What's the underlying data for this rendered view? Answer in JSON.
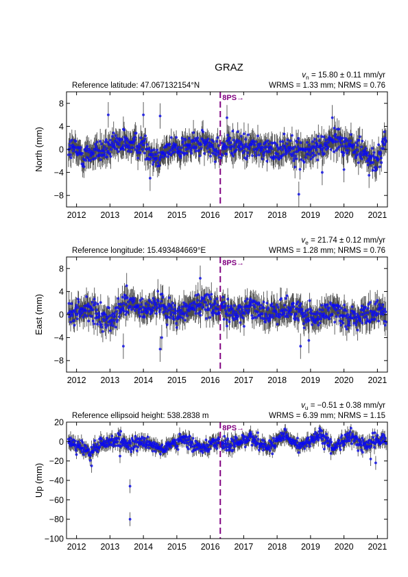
{
  "figure": {
    "title": "GRAZ"
  },
  "colors": {
    "error_bar": "#4d4d4d",
    "marker": "#1f1fd8",
    "marker_edge": "#0000ff",
    "event_line": "#800080"
  },
  "chart_data": [
    {
      "type": "scatter",
      "panel": "north",
      "ylabel": "North (mm)",
      "left_text": "Reference latitude: 47.067132154°N",
      "velocity": {
        "symbol": "v",
        "subscript": "n",
        "rest": " = 15.80 ± 0.11 mm/yr"
      },
      "stats": "WRMS = 1.33 mm; NRMS = 0.76",
      "xlim": [
        2011.7,
        2021.3
      ],
      "ylim": [
        -10,
        10
      ],
      "xticks": [
        2012,
        2013,
        2014,
        2015,
        2016,
        2017,
        2018,
        2019,
        2020,
        2021
      ],
      "yticks": [
        -8,
        -4,
        0,
        4,
        8
      ],
      "event": {
        "x": 2016.3,
        "label": "8PS→"
      },
      "noise_amp": 1.5,
      "err_amp": 1.7,
      "trend_points": [
        [
          2011.75,
          0.5
        ],
        [
          2012.2,
          -1.0
        ],
        [
          2012.5,
          -0.5
        ],
        [
          2013.0,
          0.2
        ],
        [
          2013.5,
          1.0
        ],
        [
          2014.0,
          0.8
        ],
        [
          2014.3,
          -1.2
        ],
        [
          2014.8,
          0.0
        ],
        [
          2015.3,
          0.5
        ],
        [
          2015.8,
          1.0
        ],
        [
          2016.3,
          0.0
        ],
        [
          2016.8,
          0.8
        ],
        [
          2017.3,
          0.5
        ],
        [
          2017.8,
          -0.5
        ],
        [
          2018.3,
          0.6
        ],
        [
          2018.8,
          -0.6
        ],
        [
          2019.3,
          0.5
        ],
        [
          2019.8,
          2.0
        ],
        [
          2020.2,
          0.5
        ],
        [
          2020.5,
          0.0
        ],
        [
          2020.9,
          -2.5
        ],
        [
          2021.05,
          -1.5
        ],
        [
          2021.25,
          1.8
        ]
      ],
      "outliers": [
        [
          2012.95,
          6.0
        ],
        [
          2013.4,
          3.5
        ],
        [
          2014.0,
          6.0
        ],
        [
          2014.2,
          -5.0
        ],
        [
          2014.5,
          5.8
        ],
        [
          2016.5,
          5.5
        ],
        [
          2018.65,
          -7.8
        ],
        [
          2019.35,
          -4.0
        ],
        [
          2019.65,
          5.5
        ],
        [
          2020.0,
          -3.5
        ],
        [
          2020.75,
          -4.5
        ]
      ]
    },
    {
      "type": "scatter",
      "panel": "east",
      "ylabel": "East (mm)",
      "left_text": "Reference longitude: 15.493484669°E",
      "velocity": {
        "symbol": "v",
        "subscript": "e",
        "rest": " = 21.74 ± 0.12 mm/yr"
      },
      "stats": "WRMS = 1.28 mm; NRMS = 0.76",
      "xlim": [
        2011.7,
        2021.3
      ],
      "ylim": [
        -10,
        10
      ],
      "xticks": [
        2012,
        2013,
        2014,
        2015,
        2016,
        2017,
        2018,
        2019,
        2020,
        2021
      ],
      "yticks": [
        -8,
        -4,
        0,
        4,
        8
      ],
      "event": {
        "x": 2016.3,
        "label": "8PS→"
      },
      "noise_amp": 1.4,
      "err_amp": 1.7,
      "trend_points": [
        [
          2011.75,
          0.0
        ],
        [
          2012.3,
          1.0
        ],
        [
          2012.6,
          0.0
        ],
        [
          2013.0,
          -1.0
        ],
        [
          2013.5,
          2.0
        ],
        [
          2014.0,
          0.5
        ],
        [
          2014.5,
          2.0
        ],
        [
          2015.0,
          0.0
        ],
        [
          2015.5,
          1.5
        ],
        [
          2016.0,
          2.0
        ],
        [
          2016.3,
          1.0
        ],
        [
          2016.8,
          0.0
        ],
        [
          2017.2,
          1.5
        ],
        [
          2017.8,
          0.0
        ],
        [
          2018.2,
          1.0
        ],
        [
          2018.7,
          0.5
        ],
        [
          2019.2,
          -0.5
        ],
        [
          2019.7,
          1.0
        ],
        [
          2020.2,
          -0.5
        ],
        [
          2020.6,
          -0.5
        ],
        [
          2021.0,
          0.5
        ],
        [
          2021.25,
          0.0
        ]
      ],
      "outliers": [
        [
          2013.4,
          -5.5
        ],
        [
          2013.5,
          5.0
        ],
        [
          2014.5,
          -6.0
        ],
        [
          2014.55,
          -4.0
        ],
        [
          2015.7,
          6.3
        ],
        [
          2016.5,
          -2.0
        ],
        [
          2018.7,
          -5.5
        ],
        [
          2018.95,
          -4.5
        ]
      ]
    },
    {
      "type": "scatter",
      "panel": "up",
      "ylabel": "Up (mm)",
      "left_text": "Reference ellipsoid height: 538.2838 m",
      "velocity": {
        "symbol": "v",
        "subscript": "u",
        "rest": " = −0.51 ± 0.38 mm/yr"
      },
      "stats": "WRMS = 6.39 mm; NRMS = 1.15",
      "xlim": [
        2011.7,
        2021.3
      ],
      "ylim": [
        -100,
        20
      ],
      "xticks": [
        2012,
        2013,
        2014,
        2015,
        2016,
        2017,
        2018,
        2019,
        2020,
        2021
      ],
      "yticks": [
        -100,
        -80,
        -60,
        -40,
        -20,
        0,
        20
      ],
      "event": {
        "x": 2016.3,
        "label": "8PS→"
      },
      "noise_amp": 5.0,
      "err_amp": 5.5,
      "trend_points": [
        [
          2011.75,
          2.0
        ],
        [
          2012.1,
          -5.0
        ],
        [
          2012.4,
          -12.0
        ],
        [
          2012.7,
          -3.0
        ],
        [
          2013.2,
          2.0
        ],
        [
          2013.6,
          -5.0
        ],
        [
          2014.1,
          0.0
        ],
        [
          2014.6,
          -8.0
        ],
        [
          2015.2,
          2.0
        ],
        [
          2015.6,
          -6.0
        ],
        [
          2016.2,
          0.0
        ],
        [
          2016.6,
          -5.0
        ],
        [
          2017.2,
          5.0
        ],
        [
          2017.7,
          -6.0
        ],
        [
          2018.2,
          5.0
        ],
        [
          2018.7,
          -5.0
        ],
        [
          2019.2,
          6.0
        ],
        [
          2019.7,
          -6.0
        ],
        [
          2020.2,
          6.0
        ],
        [
          2020.6,
          -5.0
        ],
        [
          2021.0,
          2.0
        ],
        [
          2021.25,
          0.0
        ]
      ],
      "outliers": [
        [
          2013.6,
          -46
        ],
        [
          2013.6,
          -80
        ],
        [
          2012.45,
          -25
        ],
        [
          2013.3,
          -15
        ],
        [
          2020.8,
          -18
        ],
        [
          2020.95,
          -22
        ]
      ]
    }
  ]
}
